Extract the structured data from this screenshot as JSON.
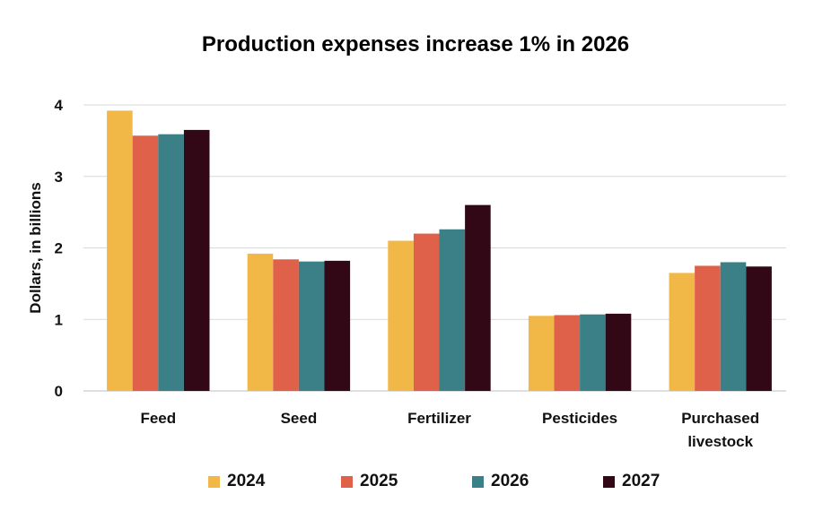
{
  "chart_data": {
    "type": "bar",
    "title": "Production expenses increase 1% in 2026",
    "ylabel": "Dollars, in billions",
    "xlabel": "",
    "ylim": [
      0,
      4
    ],
    "yticks": [
      "0",
      "1",
      "2",
      "3",
      "4"
    ],
    "grid": true,
    "legend_position": "bottom",
    "categories": [
      [
        "Feed"
      ],
      [
        "Seed"
      ],
      [
        "Fertilizer"
      ],
      [
        "Pesticides"
      ],
      [
        "Purchased",
        "livestock"
      ]
    ],
    "series": [
      {
        "name": "2024",
        "color": "#F2B847",
        "values": [
          3.92,
          1.92,
          2.1,
          1.05,
          1.65
        ]
      },
      {
        "name": "2025",
        "color": "#E0614A",
        "values": [
          3.57,
          1.84,
          2.2,
          1.06,
          1.75
        ]
      },
      {
        "name": "2026",
        "color": "#3A8086",
        "values": [
          3.59,
          1.81,
          2.26,
          1.07,
          1.8
        ]
      },
      {
        "name": "2027",
        "color": "#330816",
        "values": [
          3.65,
          1.82,
          2.6,
          1.08,
          1.74
        ]
      }
    ]
  }
}
